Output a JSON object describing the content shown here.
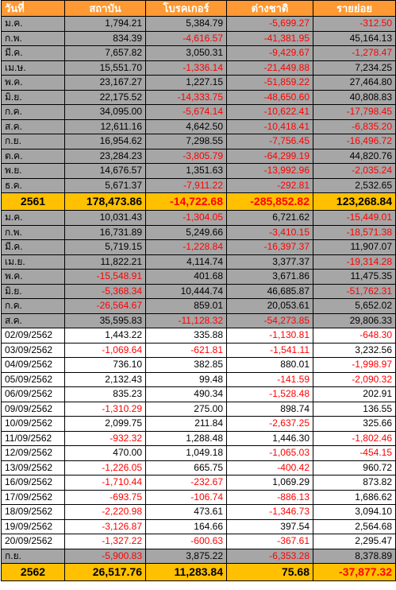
{
  "headers": [
    "วันที่",
    "สถาบัน",
    "โบรคเกอร์",
    "ต่างชาติ",
    "รายย่อย"
  ],
  "rows": [
    {
      "type": "month",
      "label": "ม.ค.",
      "values": [
        "1,794.21",
        "5,384.79",
        "-5,699.27",
        "-312.50"
      ]
    },
    {
      "type": "month",
      "label": "ก.พ.",
      "values": [
        "834.39",
        "-4,616.57",
        "-41,381.95",
        "45,164.13"
      ]
    },
    {
      "type": "month",
      "label": "มี.ค.",
      "values": [
        "7,657.82",
        "3,050.31",
        "-9,429.67",
        "-1,278.47"
      ]
    },
    {
      "type": "month",
      "label": "เม.ษ.",
      "values": [
        "15,551.70",
        "-1,336.14",
        "-21,449.88",
        "7,234.25"
      ]
    },
    {
      "type": "month",
      "label": "พ.ค.",
      "values": [
        "23,167.27",
        "1,227.15",
        "-51,859.22",
        "27,464.80"
      ]
    },
    {
      "type": "month",
      "label": "มิ.ย.",
      "values": [
        "22,175.52",
        "-14,333.75",
        "-48,650.60",
        "40,808.83"
      ]
    },
    {
      "type": "month",
      "label": "ก.ค.",
      "values": [
        "34,095.00",
        "-5,674.14",
        "-10,622.41",
        "-17,798.45"
      ]
    },
    {
      "type": "month",
      "label": "ส.ค.",
      "values": [
        "12,611.16",
        "4,642.50",
        "-10,418.41",
        "-6,835.20"
      ]
    },
    {
      "type": "month",
      "label": "ก.ย.",
      "values": [
        "16,954.62",
        "7,298.55",
        "-7,756.45",
        "-16,496.72"
      ]
    },
    {
      "type": "month",
      "label": "ต.ค.",
      "values": [
        "23,284.23",
        "-3,805.79",
        "-64,299.19",
        "44,820.76"
      ]
    },
    {
      "type": "month",
      "label": "พ.ย.",
      "values": [
        "14,676.57",
        "1,351.63",
        "-13,992.96",
        "-2,035.24"
      ]
    },
    {
      "type": "month",
      "label": "ธ.ค.",
      "values": [
        "5,671.37",
        "-7,911.22",
        "-292.81",
        "2,532.65"
      ]
    },
    {
      "type": "summary",
      "label": "2561",
      "values": [
        "178,473.86",
        "-14,722.68",
        "-285,852.82",
        "123,268.84"
      ]
    },
    {
      "type": "month",
      "label": "ม.ค.",
      "values": [
        "10,031.43",
        "-1,304.05",
        "6,721.62",
        "-15,449.01"
      ]
    },
    {
      "type": "month",
      "label": "ก.พ.",
      "values": [
        "16,731.89",
        "5,249.66",
        "-3,410.15",
        "-18,571.38"
      ]
    },
    {
      "type": "month",
      "label": "มี.ค.",
      "values": [
        "5,719.15",
        "-1,228.84",
        "-16,397.37",
        "11,907.07"
      ]
    },
    {
      "type": "month",
      "label": "เม.ย.",
      "values": [
        "11,822.21",
        "4,114.74",
        "3,377.37",
        "-19,314.28"
      ]
    },
    {
      "type": "month",
      "label": "พ.ค.",
      "values": [
        "-15,548.91",
        "401.68",
        "3,671.86",
        "11,475.35"
      ]
    },
    {
      "type": "month",
      "label": "มิ.ย.",
      "values": [
        "-5,368.34",
        "10,444.74",
        "46,685.87",
        "-51,762.31"
      ]
    },
    {
      "type": "month",
      "label": "ก.ค.",
      "values": [
        "-26,564.67",
        "859.01",
        "20,053.61",
        "5,652.02"
      ]
    },
    {
      "type": "month",
      "label": "ส.ค.",
      "values": [
        "35,595.83",
        "-11,128.32",
        "-54,273.85",
        "29,806.33"
      ]
    },
    {
      "type": "daily",
      "label": "02/09/2562",
      "values": [
        "1,443.22",
        "335.88",
        "-1,130.81",
        "-648.30"
      ]
    },
    {
      "type": "daily",
      "label": "03/09/2562",
      "values": [
        "-1,069.64",
        "-621.81",
        "-1,541.11",
        "3,232.56"
      ]
    },
    {
      "type": "daily",
      "label": "04/09/2562",
      "values": [
        "736.10",
        "382.85",
        "880.01",
        "-1,998.97"
      ]
    },
    {
      "type": "daily",
      "label": "05/09/2562",
      "values": [
        "2,132.43",
        "99.48",
        "-141.59",
        "-2,090.32"
      ]
    },
    {
      "type": "daily",
      "label": "06/09/2562",
      "values": [
        "835.23",
        "490.34",
        "-1,528.48",
        "202.91"
      ]
    },
    {
      "type": "daily",
      "label": "09/09/2562",
      "values": [
        "-1,310.29",
        "275.00",
        "898.74",
        "136.55"
      ]
    },
    {
      "type": "daily",
      "label": "10/09/2562",
      "values": [
        "2,099.75",
        "211.84",
        "-2,637.25",
        "325.66"
      ]
    },
    {
      "type": "daily",
      "label": "11/09/2562",
      "values": [
        "-932.32",
        "1,288.48",
        "1,446.30",
        "-1,802.46"
      ]
    },
    {
      "type": "daily",
      "label": "12/09/2562",
      "values": [
        "470.00",
        "1,049.18",
        "-1,065.03",
        "-454.15"
      ]
    },
    {
      "type": "daily",
      "label": "13/09/2562",
      "values": [
        "-1,226.05",
        "665.75",
        "-400.42",
        "960.72"
      ]
    },
    {
      "type": "daily",
      "label": "16/09/2562",
      "values": [
        "-1,710.44",
        "-232.67",
        "1,069.29",
        "873.82"
      ]
    },
    {
      "type": "daily",
      "label": "17/09/2562",
      "values": [
        "-693.75",
        "-106.74",
        "-886.13",
        "1,686.62"
      ]
    },
    {
      "type": "daily",
      "label": "18/09/2562",
      "values": [
        "-2,220.98",
        "473.61",
        "-1,346.73",
        "3,094.10"
      ]
    },
    {
      "type": "daily",
      "label": "19/09/2562",
      "values": [
        "-3,126.87",
        "164.66",
        "397.54",
        "2,564.68"
      ]
    },
    {
      "type": "daily",
      "label": "20/09/2562",
      "values": [
        "-1,327.22",
        "-600.63",
        "-367.61",
        "2,295.47"
      ]
    },
    {
      "type": "month",
      "label": "ก.ย.",
      "values": [
        "-5,900.83",
        "3,875.22",
        "-6,353.28",
        "8,378.89"
      ]
    },
    {
      "type": "summary",
      "label": "2562",
      "values": [
        "26,517.76",
        "11,283.84",
        "75.68",
        "-37,877.32"
      ]
    }
  ],
  "colors": {
    "header_bg": "#ff9933",
    "header_text": "#ffffff",
    "month_row_bg": "#a6a6a6",
    "summary_row_bg": "#ffc000",
    "negative_text": "#ff0000",
    "positive_text": "#000000"
  }
}
